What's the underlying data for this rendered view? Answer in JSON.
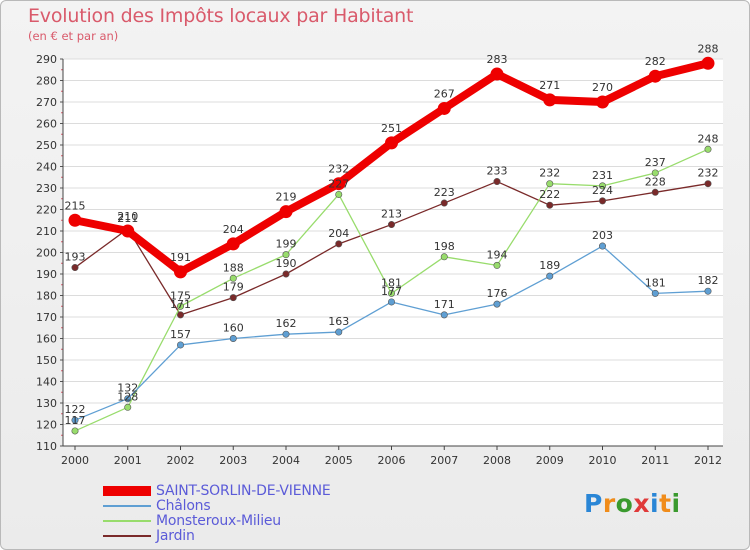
{
  "title": "Evolution des Impôts locaux par Habitant",
  "subtitle": "(en € et par an)",
  "logo": {
    "text": "Proxiti",
    "colors": [
      "#2a86d6",
      "#f08c1a",
      "#3a9a2e",
      "#e03a3a",
      "#2a86d6",
      "#f08c1a",
      "#3a9a2e"
    ]
  },
  "chart_data": {
    "type": "line",
    "title": "Evolution des Impôts locaux par Habitant",
    "subtitle": "(en € et par an)",
    "x": [
      "2000",
      "2001",
      "2002",
      "2003",
      "2004",
      "2005",
      "2006",
      "2007",
      "2008",
      "2009",
      "2010",
      "2011",
      "2012"
    ],
    "ylim": [
      110,
      290
    ],
    "yticks": [
      "110",
      "120",
      "130",
      "140",
      "150",
      "160",
      "170",
      "180",
      "190",
      "200",
      "210",
      "220",
      "230",
      "240",
      "250",
      "260",
      "270",
      "280",
      "290"
    ],
    "grid": "horizontal",
    "legend_position": "bottom-left",
    "series": [
      {
        "name": "SAINT-SORLIN-DE-VIENNE",
        "color": "#ee0000",
        "style": "thick",
        "values": [
          215,
          210,
          191,
          204,
          219,
          232,
          251,
          267,
          283,
          271,
          270,
          282,
          288
        ]
      },
      {
        "name": "Châlons",
        "color": "#5f9fd3",
        "style": "thin",
        "values": [
          122,
          132,
          157,
          160,
          162,
          163,
          177,
          171,
          176,
          189,
          203,
          181,
          182
        ]
      },
      {
        "name": "Monsteroux-Milieu",
        "color": "#98dc6c",
        "style": "thin",
        "values": [
          117,
          128,
          175,
          188,
          199,
          227,
          181,
          198,
          194,
          232,
          231,
          237,
          248
        ]
      },
      {
        "name": "Jardin",
        "color": "#7a2a2a",
        "style": "thin",
        "values": [
          193,
          211,
          171,
          179,
          190,
          204,
          213,
          223,
          233,
          222,
          224,
          228,
          232
        ]
      }
    ],
    "labels": [
      [
        "215",
        "210",
        "191",
        "204",
        "219",
        "232",
        "251",
        "267",
        "283",
        "271",
        "270",
        "282",
        "288"
      ],
      [
        "122",
        "132",
        "157",
        "160",
        "162",
        "163",
        "177",
        "171",
        "176",
        "189",
        "203",
        "181",
        "182"
      ],
      [
        "117",
        "128",
        "175",
        "188",
        "199",
        "227",
        "181",
        "198",
        "194",
        "232",
        "231",
        "237",
        "248"
      ],
      [
        "193",
        "211",
        "171",
        "179",
        "190",
        "204",
        "213",
        "223",
        "233",
        "222",
        "224",
        "228",
        "232"
      ]
    ]
  }
}
